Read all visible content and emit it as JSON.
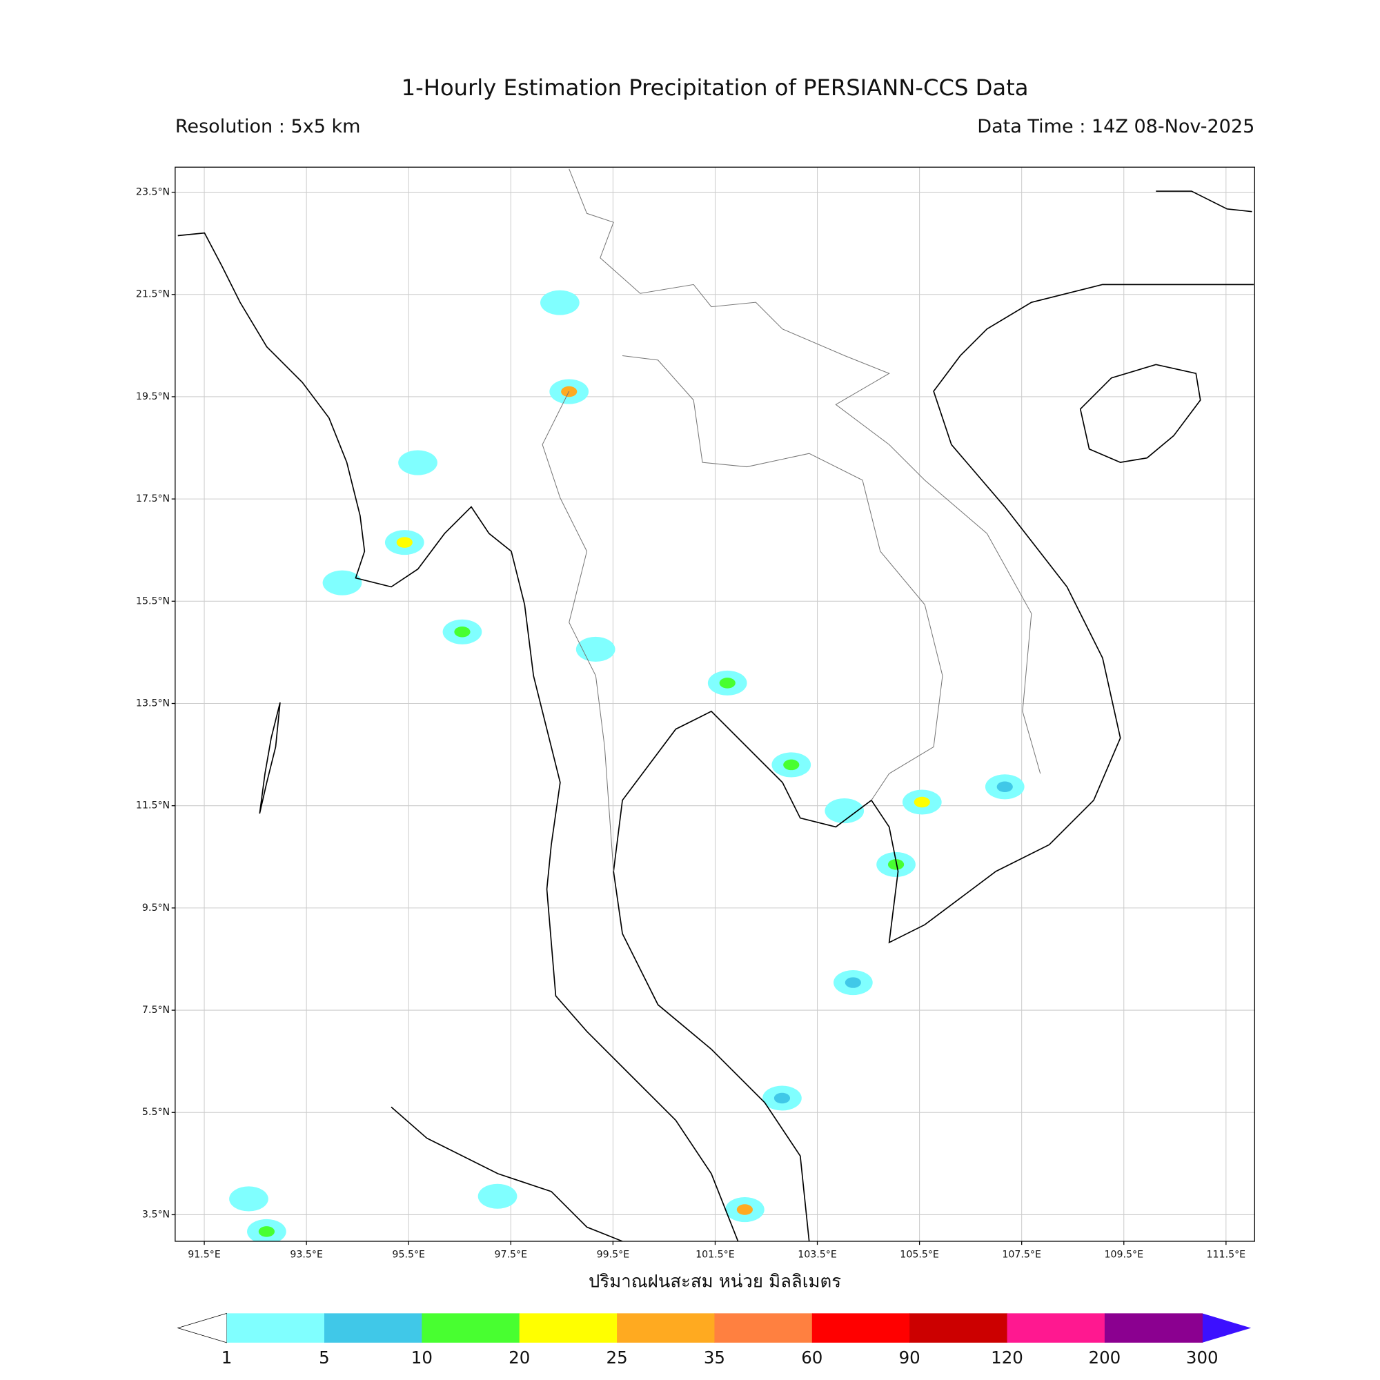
{
  "chart_data": {
    "type": "map",
    "title": "1-Hourly Estimation Precipitation of PERSIANN-CCS Data",
    "subtitle_left": "Resolution : 5x5 km",
    "subtitle_right": "Data Time : 14Z 08-Nov-2025",
    "xlabel": "ปริมาณฝนสะสม หน่วย มิลลิเมตร",
    "xlim": [
      90.93,
      112.06
    ],
    "ylim": [
      2.98,
      23.99
    ],
    "xticks": [
      {
        "value": 91.5,
        "label": "91.5°E"
      },
      {
        "value": 93.5,
        "label": "93.5°E"
      },
      {
        "value": 95.5,
        "label": "95.5°E"
      },
      {
        "value": 97.5,
        "label": "97.5°E"
      },
      {
        "value": 99.5,
        "label": "99.5°E"
      },
      {
        "value": 101.5,
        "label": "101.5°E"
      },
      {
        "value": 103.5,
        "label": "103.5°E"
      },
      {
        "value": 105.5,
        "label": "105.5°E"
      },
      {
        "value": 107.5,
        "label": "107.5°E"
      },
      {
        "value": 109.5,
        "label": "109.5°E"
      },
      {
        "value": 111.5,
        "label": "111.5°E"
      }
    ],
    "yticks": [
      {
        "value": 3.5,
        "label": "3.5°N"
      },
      {
        "value": 5.5,
        "label": "5.5°N"
      },
      {
        "value": 7.5,
        "label": "7.5°N"
      },
      {
        "value": 9.5,
        "label": "9.5°N"
      },
      {
        "value": 11.5,
        "label": "11.5°N"
      },
      {
        "value": 13.5,
        "label": "13.5°N"
      },
      {
        "value": 15.5,
        "label": "15.5°N"
      },
      {
        "value": 17.5,
        "label": "17.5°N"
      },
      {
        "value": 19.5,
        "label": "19.5°N"
      },
      {
        "value": 21.5,
        "label": "21.5°N"
      },
      {
        "value": 23.5,
        "label": "23.5°N"
      }
    ],
    "grid": true,
    "rain_cells": {
      "lon": [
        95.68,
        95.42,
        94.2,
        98.64,
        99.16,
        102.99,
        102.08,
        97.24,
        102.81,
        105.55,
        105.04,
        101.74,
        98.46,
        104.03,
        104.2,
        92.72,
        92.37,
        96.55,
        107.17
      ],
      "lat": [
        18.21,
        16.65,
        15.86,
        19.6,
        14.56,
        12.3,
        3.6,
        3.86,
        5.78,
        11.57,
        10.35,
        13.9,
        21.34,
        11.4,
        8.04,
        3.17,
        3.81,
        14.9,
        11.87
      ],
      "values": [
        3,
        20,
        2,
        25,
        3,
        10,
        25,
        2,
        5,
        20,
        10,
        10,
        2,
        2,
        5,
        10,
        2,
        10,
        5
      ]
    },
    "colorbar": {
      "levels": [
        1,
        5,
        10,
        20,
        25,
        35,
        60,
        90,
        120,
        200,
        300
      ],
      "colors": [
        "#80ffff",
        "#40c8e8",
        "#48ff30",
        "#ffff00",
        "#ffaa20",
        "#ff8040",
        "#ff0000",
        "#cc0000",
        "#ff1890",
        "#8b0090"
      ],
      "under_color": "#ffffff",
      "over_color": "#3c10ff"
    }
  }
}
